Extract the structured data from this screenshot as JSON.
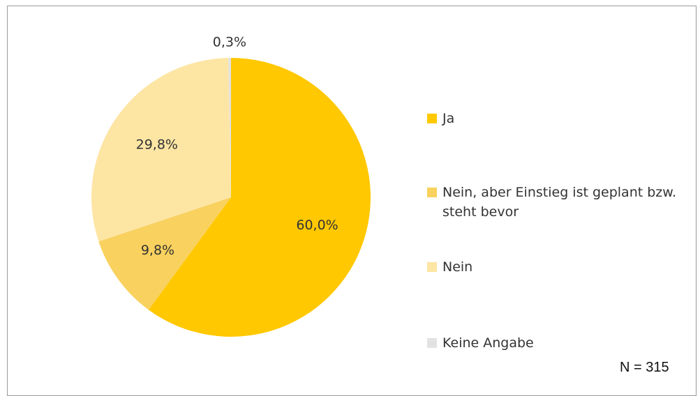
{
  "chart_data": {
    "type": "pie",
    "categories": [
      "Ja",
      "Nein, aber Einstieg ist geplant bzw. steht bevor",
      "Nein",
      "Keine Angabe"
    ],
    "values": [
      60.0,
      9.8,
      29.8,
      0.3
    ],
    "value_labels": [
      "60,0%",
      "9,8%",
      "29,8%",
      "0,3%"
    ],
    "colors": [
      "#ffc800",
      "#f9d15e",
      "#fde5a4",
      "#e2e2e2"
    ],
    "annotation": "N = 315"
  }
}
